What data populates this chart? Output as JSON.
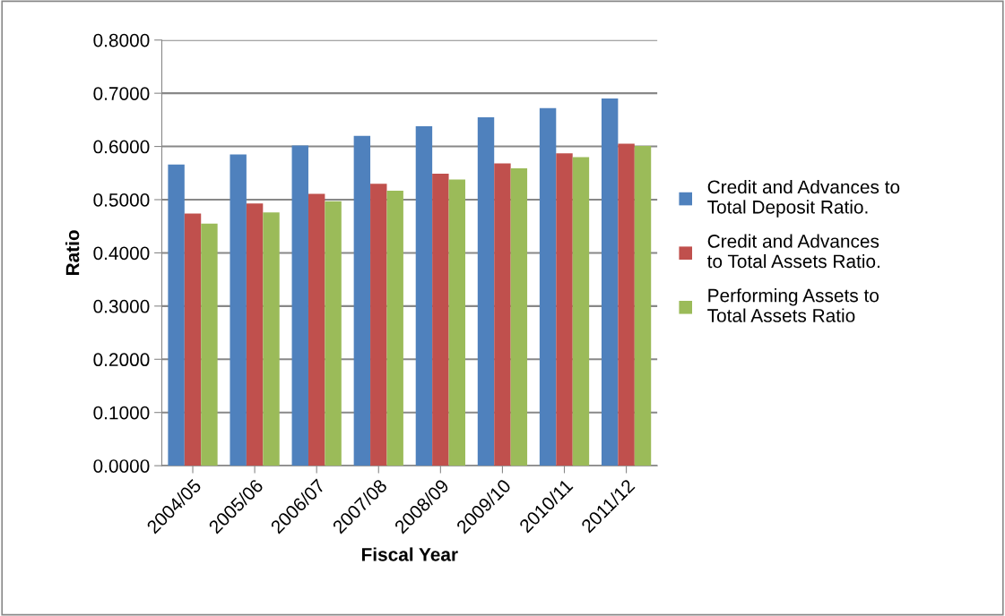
{
  "chart_data": {
    "type": "bar",
    "xlabel": "Fiscal Year",
    "ylabel": "Ratio",
    "categories": [
      "2004/05",
      "2005/06",
      "2006/07",
      "2007/08",
      "2008/09",
      "2009/10",
      "2010/11",
      "2011/12"
    ],
    "series": [
      {
        "name": "Credit and Advances to Total Deposit Ratio.",
        "color": "#4f81bd",
        "values": [
          0.566,
          0.585,
          0.602,
          0.62,
          0.638,
          0.655,
          0.672,
          0.69
        ]
      },
      {
        "name": "Credit and Advances to Total Assets Ratio.",
        "color": "#c0504d",
        "values": [
          0.474,
          0.493,
          0.511,
          0.53,
          0.549,
          0.568,
          0.587,
          0.605
        ]
      },
      {
        "name": "Performing Assets to Total Assets Ratio",
        "color": "#9bbb59",
        "values": [
          0.455,
          0.476,
          0.497,
          0.517,
          0.538,
          0.559,
          0.58,
          0.601
        ]
      }
    ],
    "ylim": [
      0,
      0.8
    ],
    "yticks": [
      {
        "value": 0,
        "label": "0.0000"
      },
      {
        "value": 0.1,
        "label": "0.1000"
      },
      {
        "value": 0.2,
        "label": "0.2000"
      },
      {
        "value": 0.3,
        "label": "0.3000"
      },
      {
        "value": 0.4,
        "label": "0.4000"
      },
      {
        "value": 0.5,
        "label": "0.5000"
      },
      {
        "value": 0.6,
        "label": "0.6000"
      },
      {
        "value": 0.7,
        "label": "0.7000"
      },
      {
        "value": 0.8,
        "label": "0.8000"
      }
    ],
    "grid": "y",
    "legend": "right"
  }
}
